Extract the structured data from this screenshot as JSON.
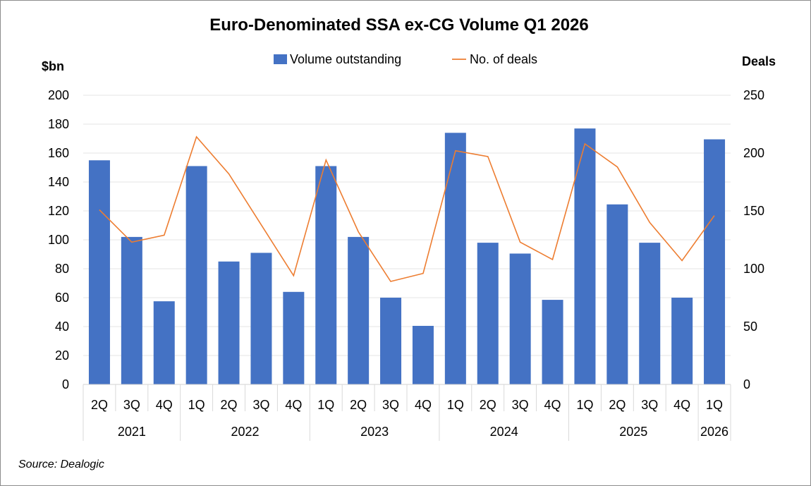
{
  "chart_data": {
    "type": "bar",
    "title": "Euro-Denominated SSA ex-CG Volume Q1 2026",
    "y_left_label": "$bn",
    "y_right_label": "Deals",
    "ylim_left": [
      0,
      200
    ],
    "ylim_right": [
      0,
      250
    ],
    "yticks_left": [
      "0",
      "20",
      "40",
      "60",
      "80",
      "100",
      "120",
      "140",
      "160",
      "180",
      "200"
    ],
    "yticks_right": [
      "0",
      "50",
      "100",
      "150",
      "200",
      "250"
    ],
    "grid": true,
    "legend_placement": "top-center",
    "categories": [
      "2Q",
      "3Q",
      "4Q",
      "1Q",
      "2Q",
      "3Q",
      "4Q",
      "1Q",
      "2Q",
      "3Q",
      "4Q",
      "1Q",
      "2Q",
      "3Q",
      "4Q",
      "1Q",
      "2Q",
      "3Q",
      "4Q",
      "1Q"
    ],
    "years": [
      {
        "label": "2021",
        "count": 3
      },
      {
        "label": "2022",
        "count": 4
      },
      {
        "label": "2023",
        "count": 4
      },
      {
        "label": "2024",
        "count": 4
      },
      {
        "label": "2025",
        "count": 4
      },
      {
        "label": "2026",
        "count": 1
      }
    ],
    "series": [
      {
        "name": "Volume outstanding",
        "kind": "bar",
        "axis": "left",
        "color": "#4472C4",
        "values": [
          155,
          102,
          57.5,
          151,
          85,
          91,
          64,
          151,
          102,
          60,
          40.5,
          174,
          98,
          90.5,
          58.5,
          177,
          124.5,
          98,
          60,
          169.5
        ]
      },
      {
        "name": "No. of deals",
        "kind": "line",
        "axis": "right",
        "color": "#ED7D31",
        "values": [
          151,
          123,
          129,
          214,
          182,
          138,
          94,
          194,
          132,
          89,
          96,
          202,
          197,
          123,
          108,
          208,
          188,
          140,
          107,
          146
        ]
      }
    ]
  },
  "source": "Source: Dealogic"
}
